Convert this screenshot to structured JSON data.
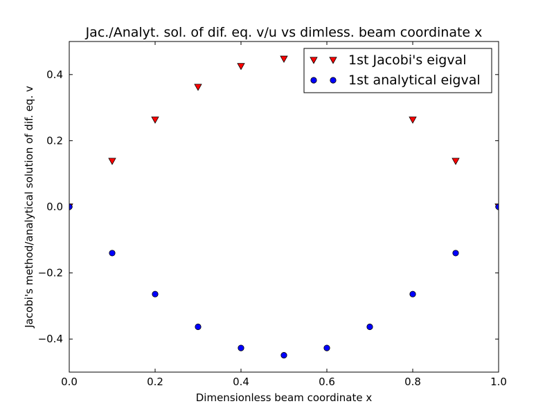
{
  "chart_data": {
    "type": "scatter",
    "title": "Jac./Analyt. sol. of dif. eq. v/u vs dimless. beam coordinate x",
    "xlabel": "Dimensionless beam coordinate x",
    "ylabel": "Jacobi's method/analytical solution of dif. eq. v",
    "xlim": [
      0.0,
      1.0
    ],
    "ylim": [
      -0.5,
      0.5
    ],
    "xticks": [
      0.0,
      0.2,
      0.4,
      0.6,
      0.8,
      1.0
    ],
    "xtick_labels": [
      "0.0",
      "0.2",
      "0.4",
      "0.6",
      "0.8",
      "1.0"
    ],
    "yticks": [
      -0.4,
      -0.2,
      0.0,
      0.2,
      0.4
    ],
    "ytick_labels": [
      "−0.4",
      "−0.2",
      "0.0",
      "0.2",
      "0.4"
    ],
    "grid": false,
    "legend_position": "top-right",
    "series": [
      {
        "name": "1st Jacobi's eigval",
        "marker": "triangle-down",
        "color": "#ff0000",
        "x": [
          0.0,
          0.1,
          0.2,
          0.3,
          0.4,
          0.5,
          0.6,
          0.7,
          0.8,
          0.9,
          1.0
        ],
        "y": [
          0.0,
          0.138,
          0.263,
          0.362,
          0.425,
          0.447,
          0.425,
          0.362,
          0.263,
          0.138,
          0.0
        ]
      },
      {
        "name": "1st analytical eigval",
        "marker": "circle",
        "color": "#0000ff",
        "x": [
          0.0,
          0.1,
          0.2,
          0.3,
          0.4,
          0.5,
          0.6,
          0.7,
          0.8,
          0.9,
          1.0
        ],
        "y": [
          0.0,
          -0.14,
          -0.264,
          -0.363,
          -0.427,
          -0.449,
          -0.427,
          -0.363,
          -0.264,
          -0.14,
          0.0
        ]
      }
    ]
  }
}
